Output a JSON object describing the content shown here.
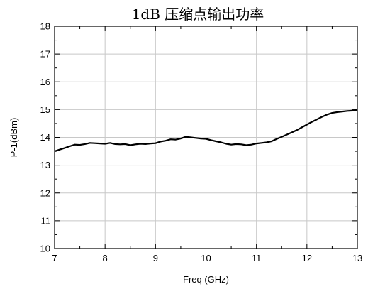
{
  "chart_data": {
    "type": "line",
    "title": "1dB 压缩点输出功率",
    "xlabel": "Freq (GHz)",
    "ylabel": "P-1(dBm)",
    "xlim": [
      7,
      13
    ],
    "ylim": [
      10,
      18
    ],
    "xticks": [
      7,
      8,
      9,
      10,
      11,
      12,
      13
    ],
    "yticks": [
      10,
      11,
      12,
      13,
      14,
      15,
      16,
      17,
      18
    ],
    "grid": true,
    "series": [
      {
        "color": "#000000",
        "x": [
          7.0,
          7.1,
          7.2,
          7.3,
          7.4,
          7.5,
          7.6,
          7.7,
          7.8,
          7.9,
          8.0,
          8.1,
          8.2,
          8.3,
          8.4,
          8.5,
          8.6,
          8.7,
          8.8,
          8.9,
          9.0,
          9.1,
          9.2,
          9.3,
          9.4,
          9.5,
          9.6,
          9.7,
          9.8,
          9.9,
          10.0,
          10.1,
          10.2,
          10.3,
          10.4,
          10.5,
          10.6,
          10.7,
          10.8,
          10.9,
          11.0,
          11.1,
          11.2,
          11.3,
          11.4,
          11.5,
          11.6,
          11.7,
          11.8,
          11.9,
          12.0,
          12.1,
          12.2,
          12.3,
          12.4,
          12.5,
          12.6,
          12.7,
          12.8,
          12.9,
          13.0
        ],
        "y": [
          13.5,
          13.56,
          13.62,
          13.68,
          13.74,
          13.73,
          13.76,
          13.8,
          13.79,
          13.78,
          13.77,
          13.8,
          13.76,
          13.75,
          13.76,
          13.72,
          13.75,
          13.77,
          13.76,
          13.78,
          13.79,
          13.85,
          13.88,
          13.93,
          13.92,
          13.96,
          14.02,
          14.0,
          13.98,
          13.96,
          13.95,
          13.9,
          13.86,
          13.82,
          13.77,
          13.74,
          13.76,
          13.75,
          13.72,
          13.74,
          13.78,
          13.8,
          13.82,
          13.86,
          13.94,
          14.02,
          14.1,
          14.18,
          14.26,
          14.36,
          14.46,
          14.56,
          14.65,
          14.74,
          14.82,
          14.88,
          14.91,
          14.93,
          14.95,
          14.96,
          14.97
        ]
      }
    ]
  }
}
